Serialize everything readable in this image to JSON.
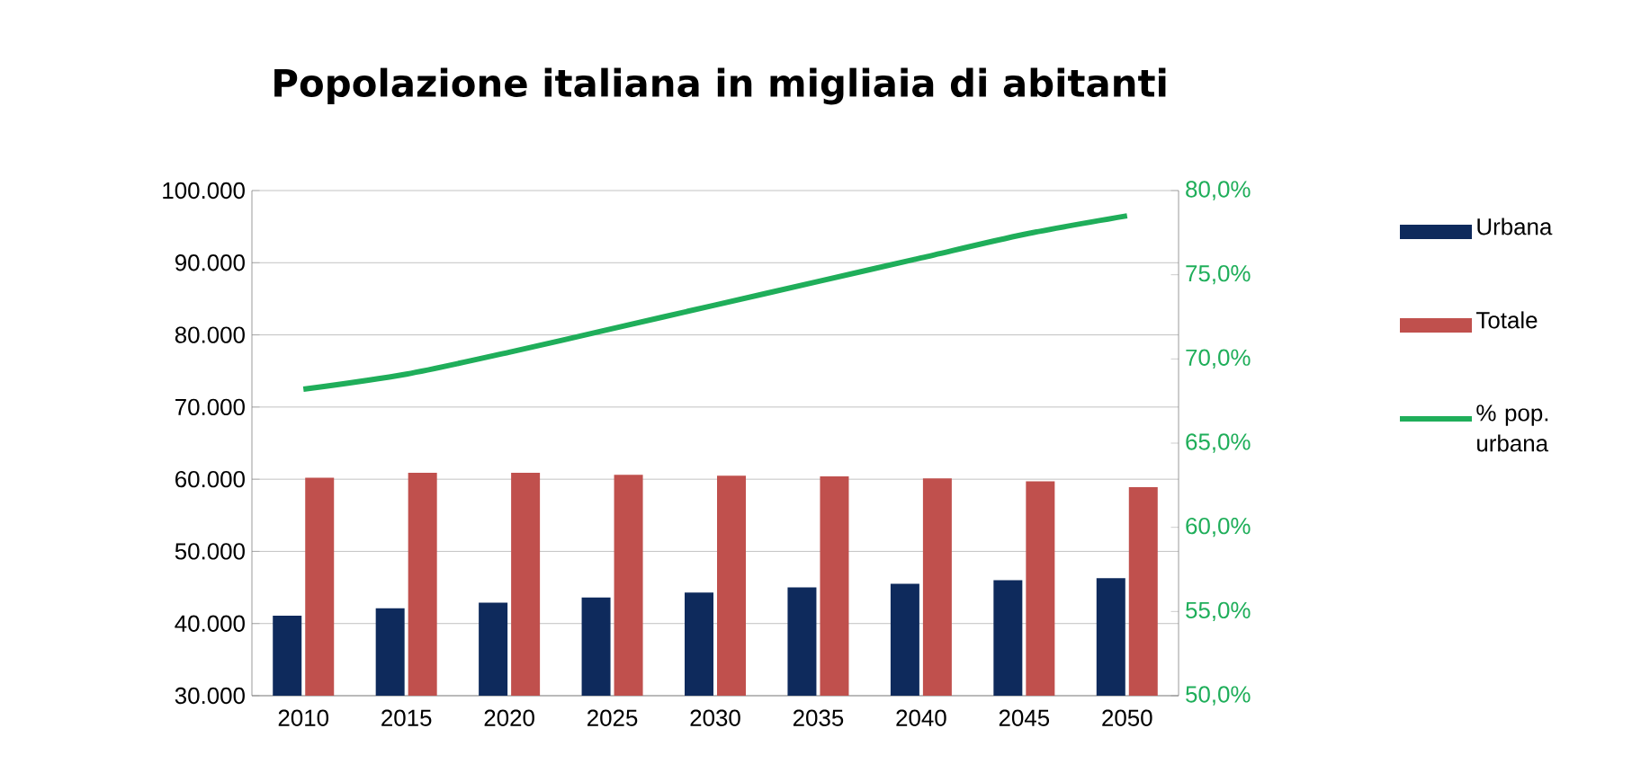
{
  "chart_data": {
    "type": "bar",
    "title": "Popolazione italiana in migliaia di abitanti",
    "categories": [
      "2010",
      "2015",
      "2020",
      "2025",
      "2030",
      "2035",
      "2040",
      "2045",
      "2050"
    ],
    "series": [
      {
        "name": "Urbana",
        "color": "#0e2a5c",
        "values": [
          41100,
          42100,
          42900,
          43600,
          44300,
          45000,
          45500,
          46000,
          46300
        ]
      },
      {
        "name": "Totale",
        "color": "#c0504d",
        "values": [
          60200,
          60900,
          60900,
          60600,
          60500,
          60400,
          60100,
          59700,
          58900
        ]
      },
      {
        "name": "% pop. urbana",
        "type": "line",
        "axis": "y2",
        "color": "#1fae5a",
        "values": [
          68.2,
          69.1,
          70.4,
          71.8,
          73.2,
          74.6,
          76.0,
          77.4,
          78.5
        ]
      }
    ],
    "ylim": [
      30000,
      100000
    ],
    "yticks": [
      {
        "value": 30000,
        "label": "30.000"
      },
      {
        "value": 40000,
        "label": "40.000"
      },
      {
        "value": 50000,
        "label": "50.000"
      },
      {
        "value": 60000,
        "label": "60.000"
      },
      {
        "value": 70000,
        "label": "70.000"
      },
      {
        "value": 80000,
        "label": "80.000"
      },
      {
        "value": 90000,
        "label": "90.000"
      },
      {
        "value": 100000,
        "label": "100.000"
      }
    ],
    "y2lim": [
      50,
      80
    ],
    "y2ticks": [
      {
        "value": 50,
        "label": "50,0%"
      },
      {
        "value": 55,
        "label": "55,0%"
      },
      {
        "value": 60,
        "label": "60,0%"
      },
      {
        "value": 65,
        "label": "65,0%"
      },
      {
        "value": 70,
        "label": "70,0%"
      },
      {
        "value": 75,
        "label": "75,0%"
      },
      {
        "value": 80,
        "label": "80,0%"
      }
    ],
    "grid": "y",
    "legend": "right"
  }
}
